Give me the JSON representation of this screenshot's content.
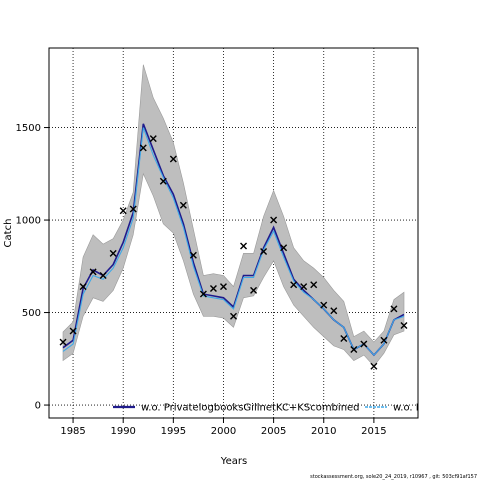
{
  "chart_data": {
    "type": "line",
    "xlabel": "Years",
    "ylabel": "Catch",
    "xlim": [
      1982.6,
      2019.4
    ],
    "ylim": [
      -70,
      1930
    ],
    "x_ticks": [
      1985,
      1990,
      1995,
      2000,
      2005,
      2010,
      2015
    ],
    "y_ticks": [
      0,
      500,
      1000,
      1500
    ],
    "grid": "dotted",
    "legend_placement": "bottom-center",
    "colors": {
      "band": "#bebebe",
      "band_edge": "#9a9a9a",
      "series1": "#1f1b8c",
      "series2": "#3fa9e8",
      "observed": "#000000"
    },
    "years": [
      1984,
      1985,
      1986,
      1987,
      1988,
      1989,
      1990,
      1991,
      1992,
      1993,
      1994,
      1995,
      1996,
      1997,
      1998,
      1999,
      2000,
      2001,
      2002,
      2003,
      2004,
      2005,
      2006,
      2007,
      2008,
      2009,
      2010,
      2011,
      2012,
      2013,
      2014,
      2015,
      2016,
      2017,
      2018
    ],
    "band_upper": [
      395,
      450,
      800,
      920,
      870,
      900,
      1000,
      1150,
      1840,
      1660,
      1550,
      1420,
      1200,
      950,
      700,
      710,
      700,
      640,
      820,
      820,
      1020,
      1160,
      1020,
      850,
      780,
      740,
      690,
      620,
      560,
      370,
      400,
      340,
      400,
      570,
      610
    ],
    "band_lower": [
      240,
      280,
      480,
      580,
      560,
      620,
      740,
      920,
      1250,
      1130,
      980,
      930,
      780,
      600,
      480,
      480,
      470,
      420,
      580,
      590,
      690,
      780,
      640,
      540,
      480,
      420,
      370,
      320,
      300,
      240,
      270,
      210,
      280,
      380,
      400
    ],
    "series": [
      {
        "name": "w.o. PrivatelogbooksGillnetKC+KScombined",
        "values": [
          310,
          350,
          630,
          730,
          700,
          760,
          880,
          1040,
          1520,
          1380,
          1240,
          1140,
          980,
          770,
          600,
          590,
          580,
          530,
          700,
          700,
          850,
          960,
          820,
          680,
          620,
          570,
          520,
          460,
          420,
          300,
          330,
          270,
          330,
          460,
          490
        ]
      },
      {
        "name": "w.o. F",
        "values": [
          290,
          330,
          600,
          700,
          680,
          740,
          850,
          1010,
          1500,
          1350,
          1230,
          1120,
          960,
          750,
          590,
          580,
          570,
          520,
          690,
          690,
          840,
          940,
          800,
          670,
          610,
          570,
          520,
          460,
          420,
          300,
          330,
          270,
          330,
          460,
          480
        ]
      }
    ],
    "observed": [
      340,
      400,
      640,
      720,
      700,
      820,
      1050,
      1060,
      1390,
      1440,
      1210,
      1330,
      1080,
      810,
      600,
      630,
      640,
      480,
      860,
      620,
      830,
      1000,
      850,
      650,
      640,
      650,
      540,
      510,
      360,
      300,
      330,
      210,
      350,
      520,
      430
    ]
  },
  "footnote": "stockassessment.org, sole20_24_2019, r10967 , git: 503cf91af157"
}
